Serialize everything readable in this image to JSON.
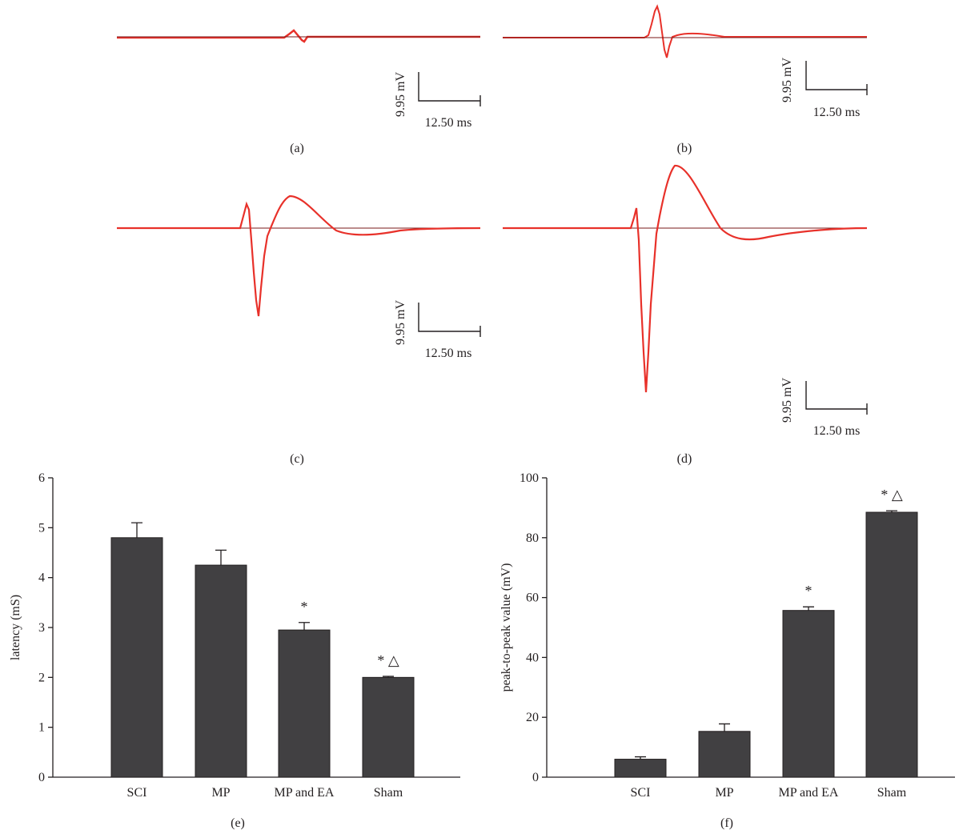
{
  "panels": [
    {
      "label": "(a)",
      "amplitude_scale": "9.95 mV",
      "time_scale": "12.50 ms"
    },
    {
      "label": "(b)",
      "amplitude_scale": "9.95 mV",
      "time_scale": "12.50 ms"
    },
    {
      "label": "(c)",
      "amplitude_scale": "9.95 mV",
      "time_scale": "12.50 ms"
    },
    {
      "label": "(d)",
      "amplitude_scale": "9.95 mV",
      "time_scale": "12.50 ms"
    },
    {
      "label": "(e)"
    },
    {
      "label": "(f)"
    }
  ],
  "colors": {
    "trace": "#e8312a",
    "baseline": "#7a1a1a",
    "bar": "#414042",
    "axis": "#231f20"
  },
  "chart_data": [
    {
      "type": "bar",
      "panel": "(e)",
      "categories": [
        "SCI",
        "MP",
        "MP and EA",
        "Sham"
      ],
      "values": [
        4.8,
        4.25,
        2.95,
        2.0
      ],
      "errors": [
        0.3,
        0.3,
        0.15,
        0.02
      ],
      "annotations": [
        "",
        "",
        "*",
        "* △"
      ],
      "title": "",
      "xlabel": "",
      "ylabel": "latency (mS)",
      "ylim": [
        0,
        6
      ],
      "yticks": [
        "0",
        "1",
        "2",
        "3",
        "4",
        "5",
        "6"
      ],
      "grid": false
    },
    {
      "type": "bar",
      "panel": "(f)",
      "categories": [
        "SCI",
        "MP",
        "MP and EA",
        "Sham"
      ],
      "values": [
        6,
        15.3,
        55.7,
        88.5
      ],
      "errors": [
        0.8,
        2.5,
        1.2,
        0.5
      ],
      "annotations": [
        "",
        "",
        "*",
        "* △"
      ],
      "title": "",
      "xlabel": "",
      "ylabel": "peak-to-peak value (mV)",
      "ylim": [
        0,
        100
      ],
      "yticks": [
        "0",
        "20",
        "40",
        "60",
        "80",
        "100"
      ],
      "grid": false
    }
  ]
}
